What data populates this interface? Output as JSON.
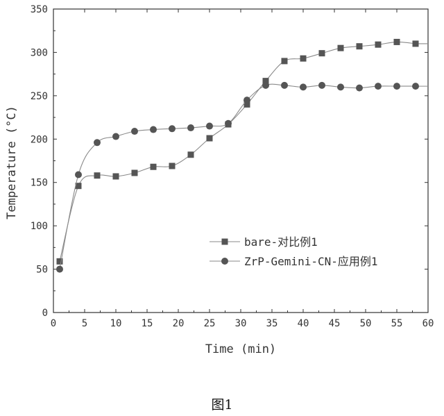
{
  "figure_caption": "图1",
  "chart_data": {
    "type": "line",
    "title": "",
    "xlabel": "Time (min)",
    "ylabel": "Temperature (°C)",
    "xlim": [
      0,
      60
    ],
    "ylim": [
      0,
      350
    ],
    "xticks": [
      0,
      5,
      10,
      15,
      20,
      25,
      30,
      35,
      40,
      45,
      50,
      55,
      60
    ],
    "yticks": [
      0,
      50,
      100,
      150,
      200,
      250,
      300,
      350
    ],
    "grid": false,
    "legend_position": "center-right",
    "series": [
      {
        "name": "bare-对比例1",
        "marker": "square",
        "color": "#555555",
        "x": [
          1,
          4,
          7,
          10,
          13,
          16,
          19,
          22,
          25,
          28,
          31,
          34,
          37,
          40,
          43,
          46,
          49,
          52,
          55,
          58
        ],
        "y": [
          59,
          146,
          158,
          157,
          161,
          168,
          169,
          182,
          201,
          217,
          240,
          267,
          290,
          293,
          299,
          305,
          307,
          309,
          312,
          310
        ]
      },
      {
        "name": "ZrP-Gemini-CN-应用例1",
        "marker": "circle",
        "color": "#555555",
        "x": [
          1,
          4,
          7,
          10,
          13,
          16,
          19,
          22,
          25,
          28,
          31,
          34,
          37,
          40,
          43,
          46,
          49,
          52,
          55,
          58
        ],
        "y": [
          50,
          159,
          196,
          203,
          209,
          211,
          212,
          213,
          215,
          218,
          245,
          262,
          262,
          260,
          262,
          260,
          259,
          261,
          261,
          261
        ]
      }
    ]
  }
}
